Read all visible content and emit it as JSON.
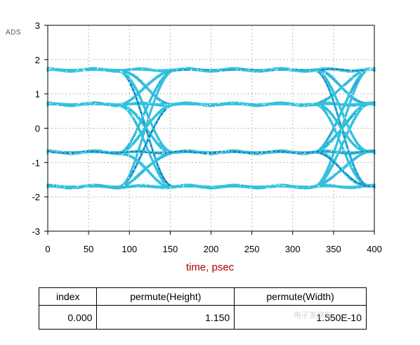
{
  "watermark": "ADS",
  "chart_data": {
    "type": "line",
    "title": "",
    "xlabel": "time, psec",
    "ylabel": "",
    "xlim": [
      0,
      400
    ],
    "ylim": [
      -3,
      3
    ],
    "x_ticks": [
      0,
      50,
      100,
      150,
      200,
      250,
      300,
      350,
      400
    ],
    "y_ticks": [
      -3,
      -2,
      -1,
      0,
      1,
      2,
      3
    ],
    "grid": "dotted",
    "bit_period": 240,
    "crossing_times": [
      120,
      360
    ],
    "levels": [
      -1.7,
      -0.7,
      0.7,
      1.7
    ],
    "colors": {
      "trace": "#33c1de",
      "trace_dark": "#1a3fa0",
      "xlabel": "#b00000",
      "grid": "#b8b8b8"
    }
  },
  "table": {
    "headers": [
      "index",
      "permute(Height)",
      "permute(Width)"
    ],
    "rows": [
      [
        "0.000",
        "1.150",
        "1.550E-10"
      ]
    ]
  },
  "page_watermark": "电子发烧友"
}
